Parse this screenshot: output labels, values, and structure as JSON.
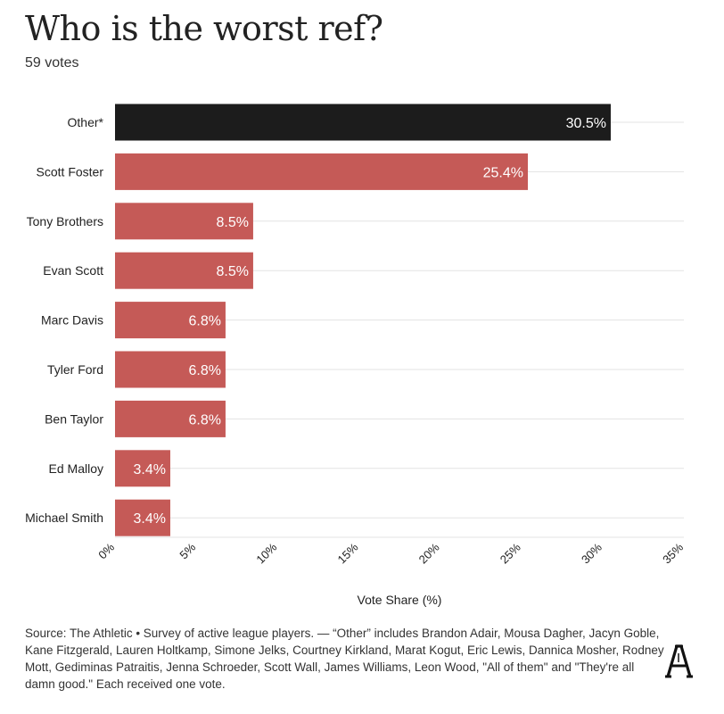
{
  "title": "Who is the worst ref?",
  "subtitle": "59 votes",
  "colors": {
    "highlight": "#1c1c1c",
    "bar": "#c55a57",
    "grid": "#e3e3e3",
    "label_text": "#ffffff",
    "axis_text": "#222222"
  },
  "chart_data": {
    "type": "bar",
    "orientation": "horizontal",
    "categories": [
      "Other*",
      "Scott Foster",
      "Tony Brothers",
      "Evan Scott",
      "Marc Davis",
      "Tyler Ford",
      "Ben Taylor",
      "Ed Malloy",
      "Michael Smith"
    ],
    "values": [
      30.5,
      25.4,
      8.5,
      8.5,
      6.8,
      6.8,
      6.8,
      3.4,
      3.4
    ],
    "value_labels": [
      "30.5%",
      "25.4%",
      "8.5%",
      "8.5%",
      "6.8%",
      "6.8%",
      "6.8%",
      "3.4%",
      "3.4%"
    ],
    "highlight_category": "Other*",
    "xlabel": "Vote Share (%)",
    "xlim": [
      0,
      35
    ],
    "xticks": [
      0,
      5,
      10,
      15,
      20,
      25,
      30,
      35
    ],
    "xtick_labels": [
      "0%",
      "5%",
      "10%",
      "15%",
      "20%",
      "25%",
      "30%",
      "35%"
    ],
    "grid": true
  },
  "footnote": "Source: The Athletic • Survey of active league players. — “Other” includes Brandon Adair, Mousa Dagher, Jacyn Goble, Kane Fitzgerald, Lauren Holtkamp, Simone Jelks, Courtney Kirkland, Marat Kogut, Eric Lewis, Dannica Mosher, Rodney Mott, Gediminas Patraitis, Jenna Schroeder, Scott Wall, James Williams, Leon Wood, \"All of them\" and \"They're all damn good.\" Each received one vote.",
  "logo_icon": "athletic-logo-icon"
}
